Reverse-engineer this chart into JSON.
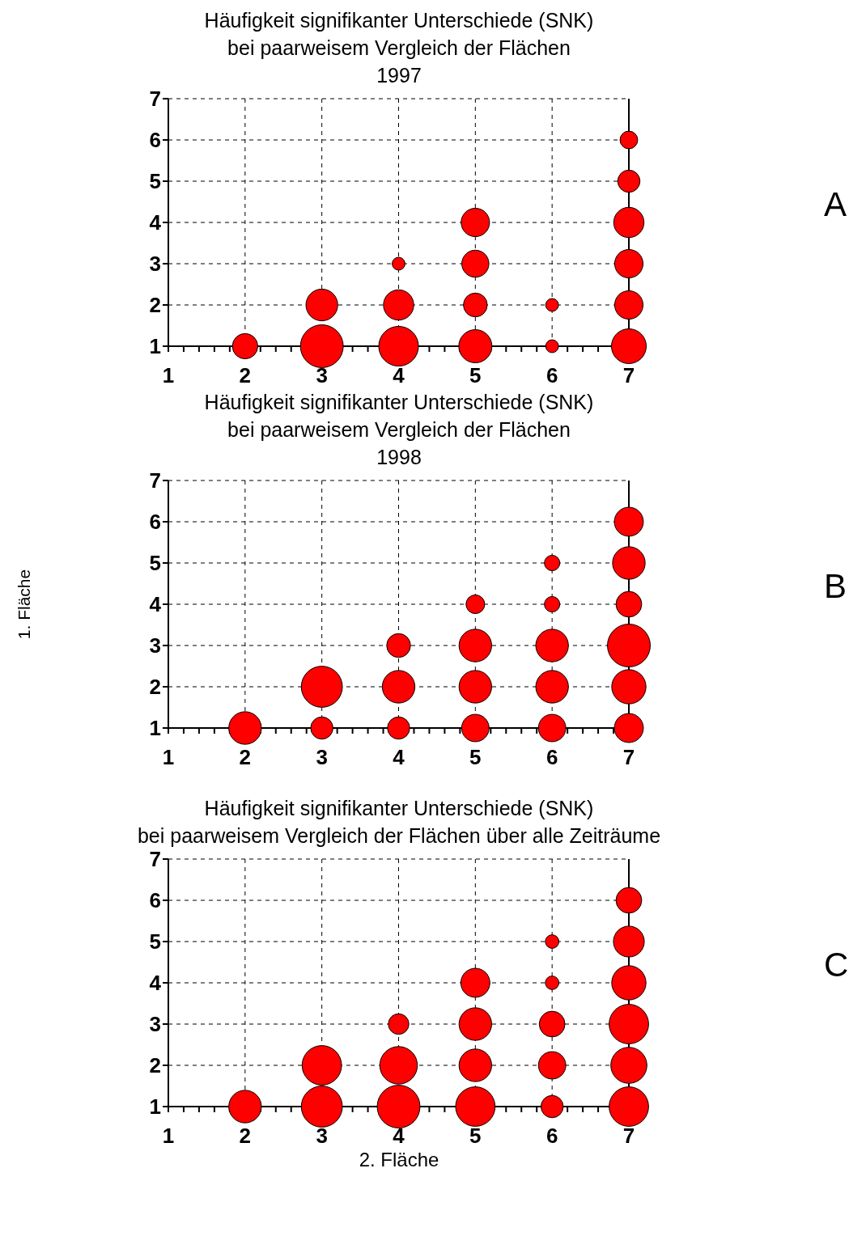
{
  "chart_data": [
    {
      "type": "bubble",
      "title": "Häufigkeit signifikanter Unterschiede (SNK)\nbei paarweisem Vergleich der Flächen\n1997",
      "annotations": [
        "A"
      ],
      "xlim": [
        1,
        7
      ],
      "ylim": [
        1,
        7
      ],
      "xticks": [
        1,
        {
          "value": 1.2,
          "label": null
        },
        {
          "value": 1.4,
          "label": null
        },
        {
          "value": 1.6,
          "label": null
        },
        {
          "value": 1.8,
          "label": null
        },
        2,
        {
          "value": 2.2,
          "label": null
        },
        {
          "value": 2.4,
          "label": null
        },
        {
          "value": 2.6,
          "label": null
        },
        {
          "value": 2.8,
          "label": null
        },
        3,
        {
          "value": 3.2,
          "label": null
        },
        {
          "value": 3.4,
          "label": null
        },
        {
          "value": 3.6,
          "label": null
        },
        {
          "value": 3.8,
          "label": null
        },
        4,
        {
          "value": 4.2,
          "label": null
        },
        {
          "value": 4.4,
          "label": null
        },
        {
          "value": 4.6,
          "label": null
        },
        {
          "value": 4.8,
          "label": null
        },
        5,
        {
          "value": 5.2,
          "label": null
        },
        {
          "value": 5.4,
          "label": null
        },
        {
          "value": 5.6,
          "label": null
        },
        {
          "value": 5.8,
          "label": null
        },
        6,
        {
          "value": 6.2,
          "label": null
        },
        {
          "value": 6.4,
          "label": null
        },
        {
          "value": 6.6,
          "label": null
        },
        {
          "value": 6.8,
          "label": null
        },
        7
      ],
      "yticks": [
        1,
        2,
        3,
        4,
        5,
        6,
        7
      ],
      "grid": true,
      "marker": "circle",
      "series": [
        {
          "color": "#ff0000",
          "x": [
            2,
            3,
            3,
            4,
            4,
            4,
            5,
            5,
            5,
            5,
            6,
            6,
            7,
            7,
            7,
            7,
            7,
            7
          ],
          "values": [
            1,
            1,
            2,
            1,
            2,
            3,
            1,
            2,
            3,
            4,
            1,
            2,
            1,
            2,
            3,
            4,
            5,
            6
          ],
          "sizes": [
            0.35,
            1,
            0.55,
            0.86,
            0.5,
            0.09,
            0.6,
            0.31,
            0.4,
            0.44,
            0.09,
            0.09,
            0.66,
            0.44,
            0.44,
            0.5,
            0.27,
            0.17
          ]
        }
      ]
    },
    {
      "type": "bubble",
      "title": "Häufigkeit signifikanter Unterschiede (SNK)\nbei paarweisem Vergleich der Flächen\n1998",
      "ylabel": "1. Fläche",
      "annotations": [
        "B"
      ],
      "xlim": [
        1,
        7
      ],
      "ylim": [
        1,
        7
      ],
      "xticks": [
        1,
        {
          "value": 1.2,
          "label": null
        },
        {
          "value": 1.4,
          "label": null
        },
        {
          "value": 1.6,
          "label": null
        },
        {
          "value": 1.8,
          "label": null
        },
        2,
        {
          "value": 2.2,
          "label": null
        },
        {
          "value": 2.4,
          "label": null
        },
        {
          "value": 2.6,
          "label": null
        },
        {
          "value": 2.8,
          "label": null
        },
        3,
        {
          "value": 3.2,
          "label": null
        },
        {
          "value": 3.4,
          "label": null
        },
        {
          "value": 3.6,
          "label": null
        },
        {
          "value": 3.8,
          "label": null
        },
        4,
        {
          "value": 4.2,
          "label": null
        },
        {
          "value": 4.4,
          "label": null
        },
        {
          "value": 4.6,
          "label": null
        },
        {
          "value": 4.8,
          "label": null
        },
        5,
        {
          "value": 5.2,
          "label": null
        },
        {
          "value": 5.4,
          "label": null
        },
        {
          "value": 5.6,
          "label": null
        },
        {
          "value": 5.8,
          "label": null
        },
        6,
        {
          "value": 6.2,
          "label": null
        },
        {
          "value": 6.4,
          "label": null
        },
        {
          "value": 6.6,
          "label": null
        },
        {
          "value": 6.8,
          "label": null
        },
        7
      ],
      "yticks": [
        1,
        2,
        3,
        4,
        5,
        6,
        7
      ],
      "grid": true,
      "marker": "circle",
      "series": [
        {
          "color": "#ff0000",
          "x": [
            2,
            3,
            3,
            4,
            4,
            4,
            5,
            5,
            5,
            5,
            6,
            6,
            6,
            6,
            6,
            7,
            7,
            7,
            7,
            7,
            7
          ],
          "values": [
            1,
            1,
            2,
            1,
            2,
            3,
            1,
            2,
            3,
            4,
            1,
            2,
            3,
            4,
            5,
            1,
            2,
            3,
            4,
            5,
            6
          ],
          "sizes": [
            0.58,
            0.27,
            0.92,
            0.27,
            0.58,
            0.31,
            0.41,
            0.58,
            0.58,
            0.19,
            0.41,
            0.58,
            0.58,
            0.13,
            0.13,
            0.46,
            0.64,
            1,
            0.36,
            0.58,
            0.46
          ]
        }
      ]
    },
    {
      "type": "bubble",
      "title": "Häufigkeit signifikanter Unterschiede (SNK)\nbei paarweisem Vergleich der Flächen über alle Zeiträume",
      "xlabel": "2. Fläche",
      "annotations": [
        "C"
      ],
      "xlim": [
        1,
        7
      ],
      "ylim": [
        1,
        7
      ],
      "xticks": [
        1,
        {
          "value": 1.2,
          "label": null
        },
        {
          "value": 1.4,
          "label": null
        },
        {
          "value": 1.6,
          "label": null
        },
        {
          "value": 1.8,
          "label": null
        },
        2,
        {
          "value": 2.2,
          "label": null
        },
        {
          "value": 2.4,
          "label": null
        },
        {
          "value": 2.6,
          "label": null
        },
        {
          "value": 2.8,
          "label": null
        },
        3,
        {
          "value": 3.2,
          "label": null
        },
        {
          "value": 3.4,
          "label": null
        },
        {
          "value": 3.6,
          "label": null
        },
        {
          "value": 3.8,
          "label": null
        },
        4,
        {
          "value": 4.2,
          "label": null
        },
        {
          "value": 4.4,
          "label": null
        },
        {
          "value": 4.6,
          "label": null
        },
        {
          "value": 4.8,
          "label": null
        },
        5,
        {
          "value": 5.2,
          "label": null
        },
        {
          "value": 5.4,
          "label": null
        },
        {
          "value": 5.6,
          "label": null
        },
        {
          "value": 5.8,
          "label": null
        },
        6,
        {
          "value": 6.2,
          "label": null
        },
        {
          "value": 6.4,
          "label": null
        },
        {
          "value": 6.6,
          "label": null
        },
        {
          "value": 6.8,
          "label": null
        },
        7
      ],
      "yticks": [
        1,
        2,
        3,
        4,
        5,
        6,
        7
      ],
      "grid": true,
      "marker": "circle",
      "series": [
        {
          "color": "#ff0000",
          "x": [
            2,
            3,
            3,
            4,
            4,
            4,
            5,
            5,
            5,
            5,
            6,
            6,
            6,
            6,
            6,
            7,
            7,
            7,
            7,
            7,
            7
          ],
          "values": [
            1,
            1,
            2,
            1,
            2,
            3,
            1,
            2,
            3,
            4,
            1,
            2,
            3,
            4,
            5,
            1,
            2,
            3,
            4,
            5,
            6
          ],
          "sizes": [
            0.58,
            0.92,
            0.85,
            1,
            0.77,
            0.23,
            0.85,
            0.58,
            0.58,
            0.46,
            0.27,
            0.41,
            0.36,
            0.1,
            0.1,
            0.85,
            0.71,
            0.85,
            0.64,
            0.52,
            0.36
          ]
        }
      ]
    }
  ]
}
